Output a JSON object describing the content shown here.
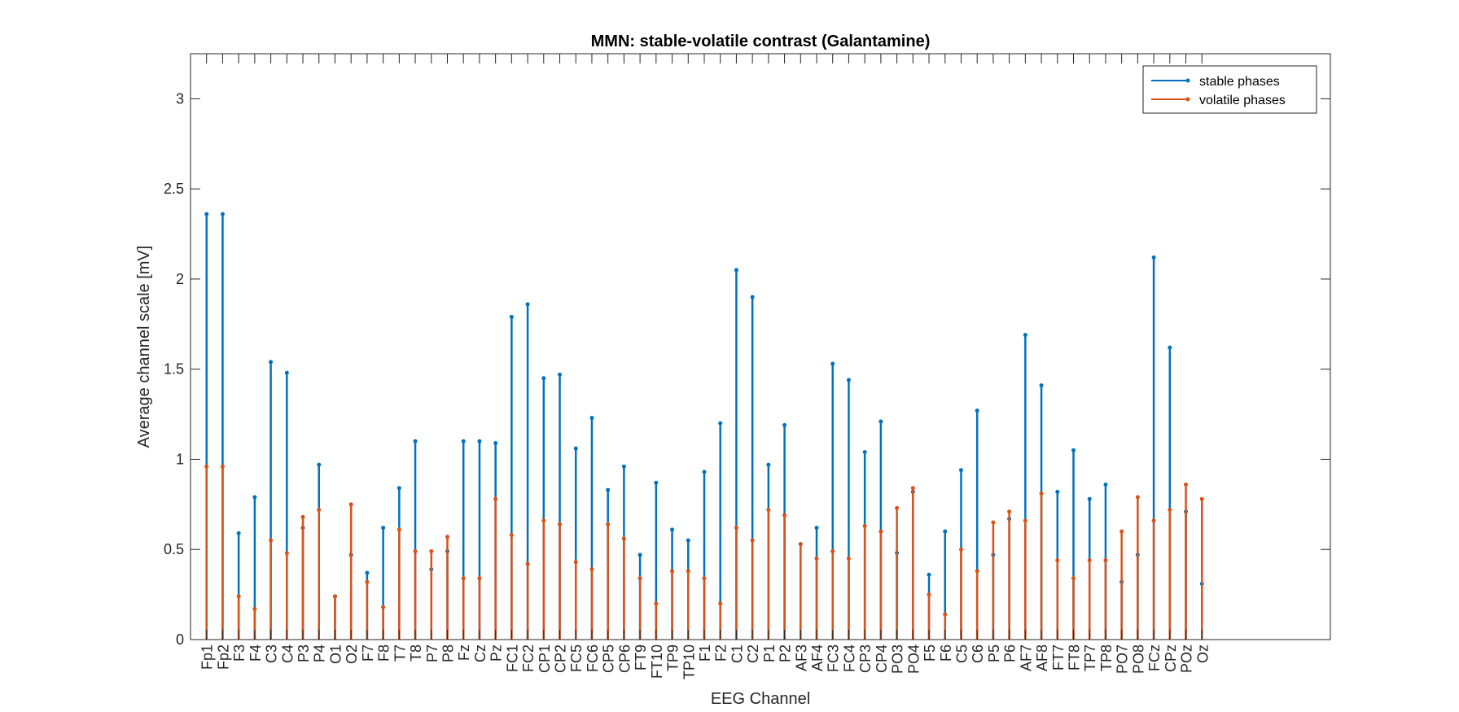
{
  "chart_data": {
    "type": "stem",
    "title": "MMN: stable-volatile contrast (Galantamine)",
    "xlabel": "EEG Channel",
    "ylabel": "Average channel scale [mV]",
    "ylim": [
      0,
      3.25
    ],
    "yticks": [
      0,
      0.5,
      1,
      1.5,
      2,
      2.5,
      3
    ],
    "ytick_labels": [
      "0",
      "0.5",
      "1",
      "1.5",
      "2",
      "2.5",
      "3"
    ],
    "grid": false,
    "legend_position": "top-right",
    "categories": [
      "Fp1",
      "Fp2",
      "F3",
      "F4",
      "C3",
      "C4",
      "P3",
      "P4",
      "O1",
      "O2",
      "F7",
      "F8",
      "T7",
      "T8",
      "P7",
      "P8",
      "Fz",
      "Cz",
      "Pz",
      "FC1",
      "FC2",
      "CP1",
      "CP2",
      "FC5",
      "FC6",
      "CP5",
      "CP6",
      "FT9",
      "FT10",
      "TP9",
      "TP10",
      "F1",
      "F2",
      "C1",
      "C2",
      "P1",
      "P2",
      "AF3",
      "AF4",
      "FC3",
      "FC4",
      "CP3",
      "CP4",
      "PO3",
      "PO4",
      "F5",
      "F6",
      "C5",
      "C6",
      "P5",
      "P6",
      "AF7",
      "AF8",
      "FT7",
      "FT8",
      "TP7",
      "TP8",
      "PO7",
      "PO8",
      "FCz",
      "CPz",
      "POz",
      "Oz"
    ],
    "series": [
      {
        "name": "stable phases",
        "color": "#0072BD",
        "values": [
          2.36,
          2.36,
          0.59,
          0.79,
          1.54,
          1.48,
          0.62,
          0.97,
          0.24,
          0.47,
          0.37,
          0.62,
          0.84,
          1.1,
          0.39,
          0.49,
          1.1,
          1.1,
          1.09,
          1.79,
          1.86,
          1.45,
          1.47,
          1.06,
          1.23,
          0.83,
          0.96,
          0.47,
          0.87,
          0.61,
          0.55,
          0.93,
          1.2,
          2.05,
          1.9,
          0.97,
          1.19,
          0.53,
          0.62,
          1.53,
          1.44,
          1.04,
          1.21,
          0.48,
          0.82,
          0.36,
          0.6,
          0.94,
          1.27,
          0.47,
          0.67,
          1.69,
          1.41,
          0.82,
          1.05,
          0.78,
          0.86,
          0.32,
          0.47,
          2.12,
          1.62,
          0.71,
          0.31
        ]
      },
      {
        "name": "volatile phases",
        "color": "#D95319",
        "values": [
          0.96,
          0.96,
          0.24,
          0.17,
          0.55,
          0.48,
          0.68,
          0.72,
          0.24,
          0.75,
          0.32,
          0.18,
          0.61,
          0.49,
          0.49,
          0.57,
          0.34,
          0.34,
          0.78,
          0.58,
          0.42,
          0.66,
          0.64,
          0.43,
          0.39,
          0.64,
          0.56,
          0.34,
          0.2,
          0.38,
          0.38,
          0.34,
          0.2,
          0.62,
          0.55,
          0.72,
          0.69,
          0.53,
          0.45,
          0.49,
          0.45,
          0.63,
          0.6,
          0.73,
          0.84,
          0.25,
          0.14,
          0.5,
          0.38,
          0.65,
          0.71,
          0.66,
          0.81,
          0.44,
          0.34,
          0.44,
          0.44,
          0.6,
          0.79,
          0.66,
          0.72,
          0.86,
          0.78
        ]
      }
    ]
  }
}
